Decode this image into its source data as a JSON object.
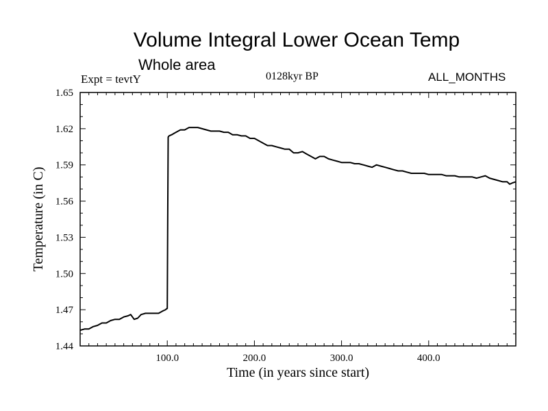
{
  "header": {
    "title": "Volume Integral Lower Ocean Temp",
    "subtitle": "Whole area",
    "experiment": "Expt = tevtY",
    "period": "0128kyr BP",
    "months": "ALL_MONTHS"
  },
  "chart_data": {
    "type": "line",
    "title": "Volume Integral Lower Ocean Temp",
    "xlabel": "Time (in years since start)",
    "ylabel": "Temperature (in C)",
    "xlim": [
      0,
      500
    ],
    "ylim": [
      1.44,
      1.65
    ],
    "xticks": [
      100,
      200,
      300,
      400
    ],
    "xtick_labels": [
      "100.0",
      "200.0",
      "300.0",
      "400.0"
    ],
    "yticks": [
      1.44,
      1.47,
      1.5,
      1.53,
      1.56,
      1.59,
      1.62,
      1.65
    ],
    "ytick_labels": [
      "1.44",
      "1.47",
      "1.50",
      "1.53",
      "1.56",
      "1.59",
      "1.62",
      "1.65"
    ],
    "grid": false,
    "series": [
      {
        "name": "Volume integral lower ocean temperature",
        "x": [
          0,
          5,
          10,
          15,
          20,
          25,
          30,
          35,
          40,
          45,
          50,
          55,
          58,
          62,
          66,
          70,
          75,
          80,
          85,
          90,
          95,
          98,
          99.5,
          100,
          100.5,
          101,
          102,
          105,
          110,
          115,
          120,
          125,
          130,
          135,
          140,
          145,
          150,
          155,
          160,
          165,
          170,
          175,
          180,
          185,
          190,
          195,
          200,
          205,
          210,
          215,
          220,
          225,
          230,
          235,
          240,
          245,
          250,
          255,
          260,
          265,
          270,
          275,
          280,
          285,
          290,
          295,
          300,
          305,
          310,
          315,
          320,
          325,
          330,
          335,
          340,
          345,
          350,
          355,
          360,
          365,
          370,
          375,
          380,
          385,
          390,
          395,
          400,
          405,
          410,
          415,
          420,
          425,
          430,
          435,
          440,
          445,
          450,
          455,
          460,
          465,
          470,
          475,
          480,
          485,
          490,
          493,
          496,
          500
        ],
        "y": [
          1.453,
          1.454,
          1.454,
          1.456,
          1.457,
          1.459,
          1.459,
          1.461,
          1.462,
          1.462,
          1.464,
          1.465,
          1.466,
          1.462,
          1.463,
          1.466,
          1.467,
          1.467,
          1.467,
          1.467,
          1.469,
          1.47,
          1.471,
          1.471,
          1.54,
          1.613,
          1.614,
          1.615,
          1.617,
          1.619,
          1.619,
          1.621,
          1.621,
          1.621,
          1.62,
          1.619,
          1.618,
          1.618,
          1.618,
          1.617,
          1.617,
          1.615,
          1.615,
          1.614,
          1.614,
          1.612,
          1.612,
          1.61,
          1.608,
          1.606,
          1.606,
          1.605,
          1.604,
          1.603,
          1.603,
          1.6,
          1.6,
          1.601,
          1.599,
          1.597,
          1.595,
          1.597,
          1.597,
          1.595,
          1.594,
          1.593,
          1.592,
          1.592,
          1.592,
          1.591,
          1.591,
          1.59,
          1.589,
          1.588,
          1.59,
          1.589,
          1.588,
          1.587,
          1.586,
          1.585,
          1.585,
          1.584,
          1.583,
          1.583,
          1.583,
          1.583,
          1.582,
          1.582,
          1.582,
          1.582,
          1.581,
          1.581,
          1.581,
          1.58,
          1.58,
          1.58,
          1.58,
          1.579,
          1.58,
          1.581,
          1.579,
          1.578,
          1.577,
          1.576,
          1.576,
          1.574,
          1.575,
          1.576
        ]
      }
    ]
  }
}
